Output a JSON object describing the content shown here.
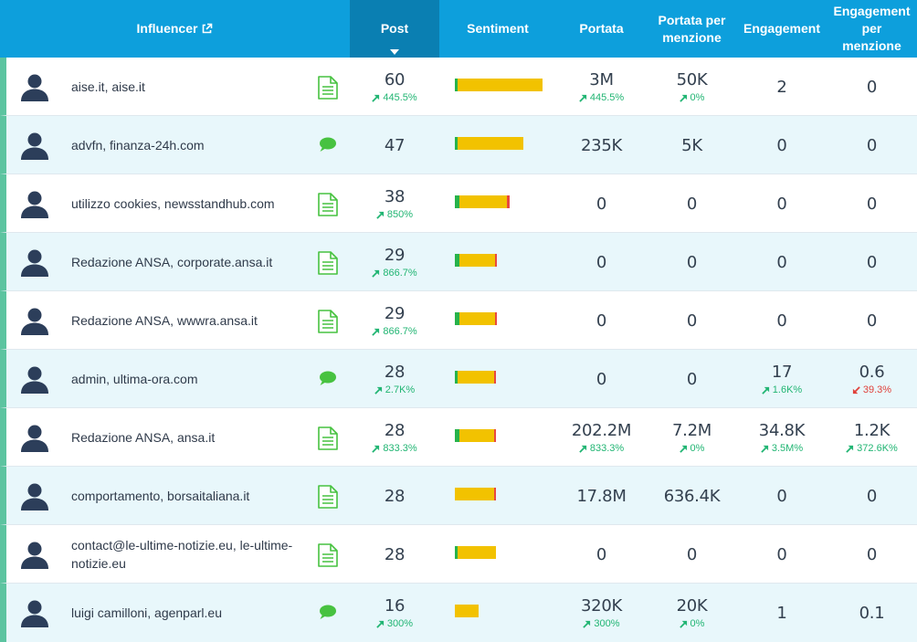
{
  "header": {
    "influencer": "Influencer",
    "post": "Post",
    "sentiment": "Sentiment",
    "portata": "Portata",
    "portata_per_menzione": "Portata per menzione",
    "engagement": "Engagement",
    "engagement_per_menzione": "Engagement per menzione"
  },
  "colors": {
    "header": "#0d9fdc",
    "sorted_header": "#0a7fb2",
    "row_alt": "#e8f7fb",
    "row_accent": "#5cc4a0",
    "positive": "#27b34b",
    "neutral": "#f2c200",
    "negative": "#e8483f",
    "delta_up": "#21b573",
    "delta_down": "#e0413b"
  },
  "rows": [
    {
      "name": "aise.it, aise.it",
      "type": "document-icon",
      "post": "60",
      "post_delta": "445.5%",
      "post_dir": "up",
      "sentiment": {
        "pos": 0.02,
        "neu": 0.98,
        "neg": 0.0,
        "scale": 1.0
      },
      "portata": "3M",
      "portata_delta": "445.5%",
      "portata_dir": "up",
      "ppm": "50K",
      "ppm_delta": "0%",
      "ppm_dir": "up",
      "eng": "2",
      "eng_delta": "",
      "eng_dir": "",
      "epm": "0",
      "epm_delta": "",
      "epm_dir": ""
    },
    {
      "name": "advfn, finanza-24h.com",
      "type": "comment-icon",
      "post": "47",
      "post_delta": "",
      "post_dir": "",
      "sentiment": {
        "pos": 0.03,
        "neu": 0.97,
        "neg": 0.0,
        "scale": 0.78
      },
      "portata": "235K",
      "portata_delta": "",
      "portata_dir": "",
      "ppm": "5K",
      "ppm_delta": "",
      "ppm_dir": "",
      "eng": "0",
      "eng_delta": "",
      "eng_dir": "",
      "epm": "0",
      "epm_delta": "",
      "epm_dir": ""
    },
    {
      "name": "utilizzo cookies, newsstandhub.com",
      "type": "document-icon",
      "post": "38",
      "post_delta": "850%",
      "post_dir": "up",
      "sentiment": {
        "pos": 0.08,
        "neu": 0.87,
        "neg": 0.05,
        "scale": 0.63
      },
      "portata": "0",
      "portata_delta": "",
      "portata_dir": "",
      "ppm": "0",
      "ppm_delta": "",
      "ppm_dir": "",
      "eng": "0",
      "eng_delta": "",
      "eng_dir": "",
      "epm": "0",
      "epm_delta": "",
      "epm_dir": ""
    },
    {
      "name": "Redazione ANSA, corporate.ansa.it",
      "type": "document-icon",
      "post": "29",
      "post_delta": "866.7%",
      "post_dir": "up",
      "sentiment": {
        "pos": 0.1,
        "neu": 0.86,
        "neg": 0.04,
        "scale": 0.48
      },
      "portata": "0",
      "portata_delta": "",
      "portata_dir": "",
      "ppm": "0",
      "ppm_delta": "",
      "ppm_dir": "",
      "eng": "0",
      "eng_delta": "",
      "eng_dir": "",
      "epm": "0",
      "epm_delta": "",
      "epm_dir": ""
    },
    {
      "name": "Redazione ANSA, wwwra.ansa.it",
      "type": "document-icon",
      "post": "29",
      "post_delta": "866.7%",
      "post_dir": "up",
      "sentiment": {
        "pos": 0.1,
        "neu": 0.86,
        "neg": 0.04,
        "scale": 0.48
      },
      "portata": "0",
      "portata_delta": "",
      "portata_dir": "",
      "ppm": "0",
      "ppm_delta": "",
      "ppm_dir": "",
      "eng": "0",
      "eng_delta": "",
      "eng_dir": "",
      "epm": "0",
      "epm_delta": "",
      "epm_dir": ""
    },
    {
      "name": "admin, ultima-ora.com",
      "type": "comment-icon",
      "post": "28",
      "post_delta": "2.7K%",
      "post_dir": "up",
      "sentiment": {
        "pos": 0.04,
        "neu": 0.92,
        "neg": 0.04,
        "scale": 0.47
      },
      "portata": "0",
      "portata_delta": "",
      "portata_dir": "",
      "ppm": "0",
      "ppm_delta": "",
      "ppm_dir": "",
      "eng": "17",
      "eng_delta": "1.6K%",
      "eng_dir": "up",
      "epm": "0.6",
      "epm_delta": "39.3%",
      "epm_dir": "down"
    },
    {
      "name": "Redazione ANSA, ansa.it",
      "type": "document-icon",
      "post": "28",
      "post_delta": "833.3%",
      "post_dir": "up",
      "sentiment": {
        "pos": 0.1,
        "neu": 0.86,
        "neg": 0.04,
        "scale": 0.47
      },
      "portata": "202.2M",
      "portata_delta": "833.3%",
      "portata_dir": "up",
      "ppm": "7.2M",
      "ppm_delta": "0%",
      "ppm_dir": "up",
      "eng": "34.8K",
      "eng_delta": "3.5M%",
      "eng_dir": "up",
      "epm": "1.2K",
      "epm_delta": "372.6K%",
      "epm_dir": "up"
    },
    {
      "name": "comportamento, borsaitaliana.it",
      "type": "document-icon",
      "post": "28",
      "post_delta": "",
      "post_dir": "",
      "sentiment": {
        "pos": 0.0,
        "neu": 0.96,
        "neg": 0.04,
        "scale": 0.47
      },
      "portata": "17.8M",
      "portata_delta": "",
      "portata_dir": "",
      "ppm": "636.4K",
      "ppm_delta": "",
      "ppm_dir": "",
      "eng": "0",
      "eng_delta": "",
      "eng_dir": "",
      "epm": "0",
      "epm_delta": "",
      "epm_dir": ""
    },
    {
      "name": "contact@le-ultime-notizie.eu, le-ultime-notizie.eu",
      "type": "document-icon",
      "post": "28",
      "post_delta": "",
      "post_dir": "",
      "sentiment": {
        "pos": 0.04,
        "neu": 0.96,
        "neg": 0.0,
        "scale": 0.47
      },
      "portata": "0",
      "portata_delta": "",
      "portata_dir": "",
      "ppm": "0",
      "ppm_delta": "",
      "ppm_dir": "",
      "eng": "0",
      "eng_delta": "",
      "eng_dir": "",
      "epm": "0",
      "epm_delta": "",
      "epm_dir": ""
    },
    {
      "name": "luigi camilloni, agenparl.eu",
      "type": "comment-icon",
      "post": "16",
      "post_delta": "300%",
      "post_dir": "up",
      "sentiment": {
        "pos": 0.0,
        "neu": 1.0,
        "neg": 0.0,
        "scale": 0.27
      },
      "portata": "320K",
      "portata_delta": "300%",
      "portata_dir": "up",
      "ppm": "20K",
      "ppm_delta": "0%",
      "ppm_dir": "up",
      "eng": "1",
      "eng_delta": "",
      "eng_dir": "",
      "epm": "0.1",
      "epm_delta": "",
      "epm_dir": ""
    }
  ]
}
